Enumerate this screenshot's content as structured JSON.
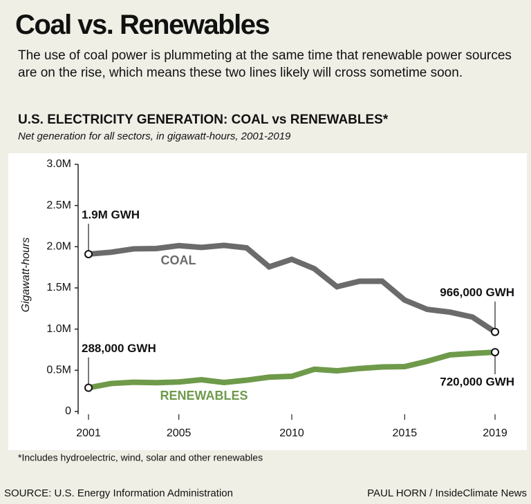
{
  "header": {
    "title": "Coal vs. Renewables",
    "description": "The use of coal power is plummeting at the same time that renewable power sources are on the rise, which means these two lines likely will cross sometime soon."
  },
  "chart_data": {
    "type": "line",
    "title": "U.S. ELECTRICITY GENERATION: COAL vs RENEWABLES*",
    "subtitle": "Net generation for all sectors, in gigawatt-hours, 2001-2019",
    "ylabel": "Gigawatt-hours",
    "x": [
      2001,
      2002,
      2003,
      2004,
      2005,
      2006,
      2007,
      2008,
      2009,
      2010,
      2011,
      2012,
      2013,
      2014,
      2015,
      2016,
      2017,
      2018,
      2019
    ],
    "xlim": [
      2001,
      2019
    ],
    "xticks": [
      2001,
      2005,
      2010,
      2015,
      2019
    ],
    "ylim": [
      0,
      3000000
    ],
    "yticks": [
      0,
      {
        "value": 500000,
        "label": "0.5M"
      },
      {
        "value": 1000000,
        "label": "1.0M"
      },
      {
        "value": 1500000,
        "label": "1.5M"
      },
      {
        "value": 2000000,
        "label": "2.0M"
      },
      {
        "value": 2500000,
        "label": "2.5M"
      },
      {
        "value": 3000000,
        "label": "3.0M"
      }
    ],
    "grid": false,
    "series": [
      {
        "name": "COAL",
        "color": "#6b6b6b",
        "values": [
          1910000,
          1933000,
          1974000,
          1978000,
          2013000,
          1991000,
          2016000,
          1986000,
          1756000,
          1847000,
          1733000,
          1514000,
          1581000,
          1582000,
          1352000,
          1239000,
          1206000,
          1146000,
          966000
        ],
        "value_labels": [
          "1.9M GWH",
          null,
          null,
          null,
          null,
          null,
          null,
          null,
          null,
          null,
          null,
          null,
          null,
          null,
          null,
          null,
          null,
          null,
          "966,000 GWH"
        ]
      },
      {
        "name": "RENEWABLES",
        "color": "#6e9a4a",
        "values": [
          288000,
          340000,
          355000,
          350000,
          358000,
          385000,
          352000,
          380000,
          417000,
          427000,
          513000,
          494000,
          522000,
          540000,
          545000,
          610000,
          687000,
          705000,
          720000
        ],
        "value_labels": [
          "288,000 GWH",
          null,
          null,
          null,
          null,
          null,
          null,
          null,
          null,
          null,
          null,
          null,
          null,
          null,
          null,
          null,
          null,
          null,
          "720,000 GWH"
        ]
      }
    ],
    "footnote": "*Includes hydroelectric, wind, solar and other renewables"
  },
  "footer": {
    "source": "SOURCE: U.S. Energy Information Administration",
    "credit": "PAUL HORN / InsideClimate News"
  }
}
